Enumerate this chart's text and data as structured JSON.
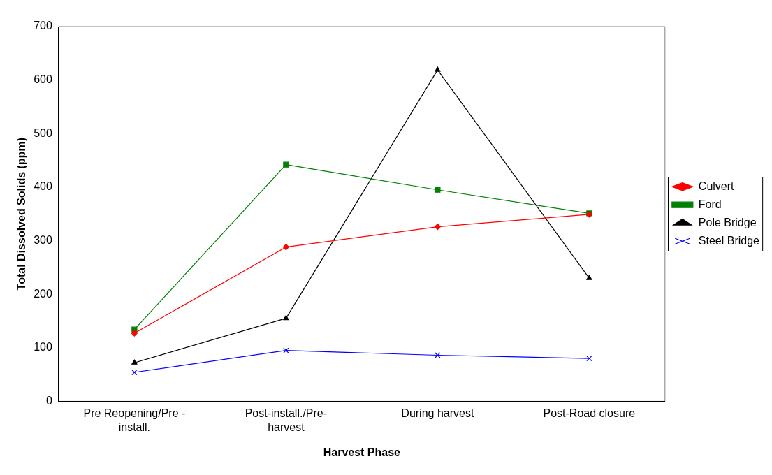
{
  "chart_data": {
    "type": "line",
    "xlabel": "Harvest Phase",
    "ylabel": "Total Dissolved Solids (ppm)",
    "categories": [
      "Pre Reopening/Pre - install.",
      "Post-install./Pre-harvest",
      "During harvest",
      "Post-Road closure"
    ],
    "series": [
      {
        "name": "Culvert",
        "color": "#ff0000",
        "marker": "diamond",
        "values": [
          127,
          288,
          326,
          349
        ]
      },
      {
        "name": "Ford",
        "color": "#008000",
        "marker": "square",
        "values": [
          134,
          442,
          395,
          351
        ]
      },
      {
        "name": "Pole Bridge",
        "color": "#000000",
        "marker": "triangle",
        "values": [
          72,
          155,
          619,
          230
        ]
      },
      {
        "name": "Steel Bridge",
        "color": "#0000ff",
        "marker": "cross",
        "values": [
          54,
          95,
          86,
          80
        ]
      }
    ],
    "ylim": [
      0,
      700
    ],
    "yticks": [
      0,
      100,
      200,
      300,
      400,
      500,
      600,
      700
    ],
    "grid": false,
    "legend": "right",
    "line_style": "solid"
  }
}
